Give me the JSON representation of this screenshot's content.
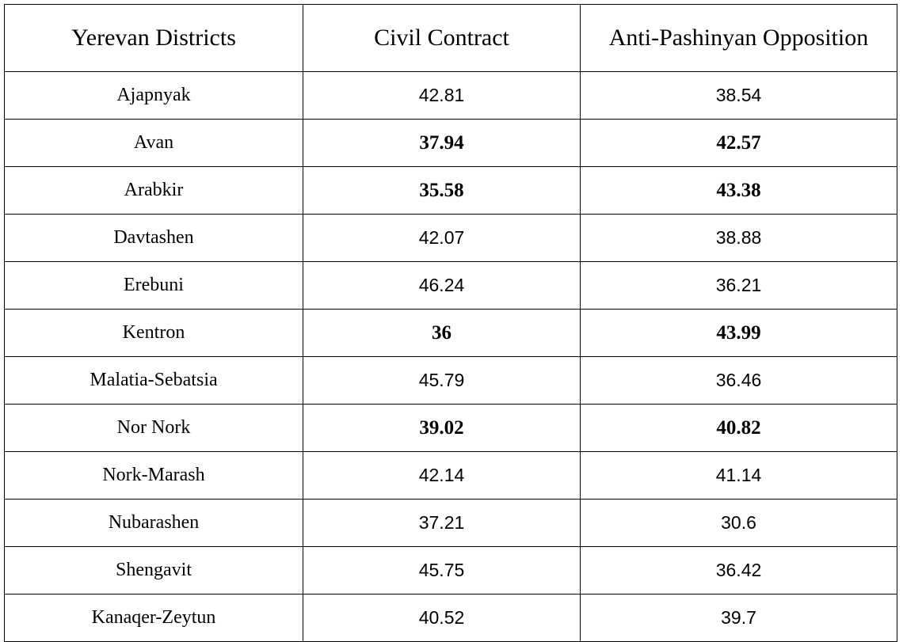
{
  "table": {
    "headers": [
      "Yerevan Districts",
      "Civil Contract",
      "Anti-Pashinyan Opposition"
    ],
    "rows": [
      [
        "Ajapnyak",
        42.81,
        38.54
      ],
      [
        "Avan",
        37.94,
        42.57
      ],
      [
        "Arabkir",
        35.58,
        43.38
      ],
      [
        "Davtashen",
        42.07,
        38.88
      ],
      [
        "Erebuni",
        46.24,
        36.21
      ],
      [
        "Kentron",
        36,
        43.99
      ],
      [
        "Malatia-Sebatsia",
        45.79,
        36.46
      ],
      [
        "Nor Nork",
        39.02,
        40.82
      ],
      [
        "Nork-Marash",
        42.14,
        41.14
      ],
      [
        "Nubarashen",
        37.21,
        30.6
      ],
      [
        "Shengavit",
        45.75,
        36.42
      ],
      [
        "Kanaqer-Zeytun",
        40.52,
        39.7
      ]
    ],
    "bold_rows": [
      1,
      2,
      5,
      7
    ]
  }
}
